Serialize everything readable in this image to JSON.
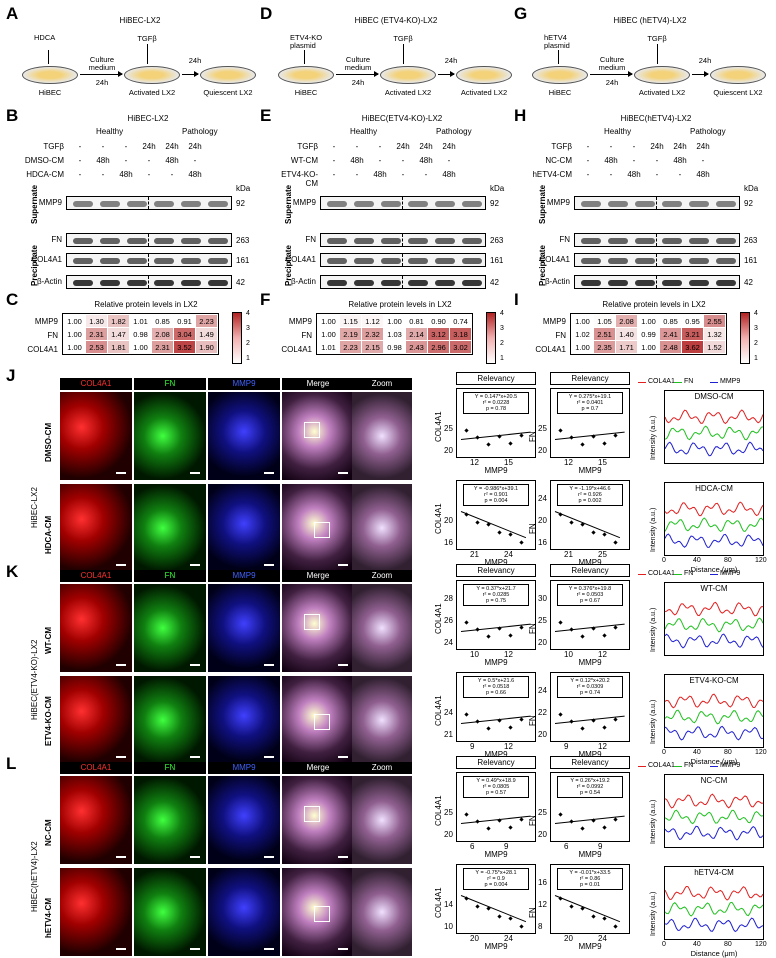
{
  "panels": {
    "A": "A",
    "B": "B",
    "C": "C",
    "D": "D",
    "E": "E",
    "F": "F",
    "G": "G",
    "H": "H",
    "I": "I",
    "J": "J",
    "K": "K",
    "L": "L"
  },
  "schemes": [
    {
      "title": "HiBEC-LX2",
      "left_top": "HDCA",
      "mid_label": "Culture\nmedium",
      "mid_time": "24h",
      "treat": "TGFβ",
      "time2": "24h",
      "dish1": "HiBEC",
      "dish2": "Activated LX2",
      "dish3": "Quiescent LX2"
    },
    {
      "title": "HiBEC (ETV4-KO)-LX2",
      "left_top": "ETV4-KO\nplasmid",
      "mid_label": "Culture\nmedium",
      "mid_time": "24h",
      "treat": "TGFβ",
      "time2": "24h",
      "dish1": "HiBEC",
      "dish2": "Activated LX2",
      "dish3": "Activated LX2"
    },
    {
      "title": "HiBEC (hETV4)-LX2",
      "left_top": "hETV4\nplasmid",
      "mid_label": "Culture\nmedium",
      "mid_time": "24h",
      "treat": "TGFβ",
      "time2": "24h",
      "dish1": "HiBEC",
      "dish2": "Activated LX2",
      "dish3": "Quiescent LX2"
    }
  ],
  "blots": [
    {
      "title": "HiBEC-LX2",
      "healthy": "Healthy",
      "pathology": "Pathology",
      "rows": [
        [
          "TGFβ",
          "-",
          "-",
          "-",
          "24h",
          "24h",
          "24h"
        ],
        [
          "DMSO-CM",
          "-",
          "48h",
          "-",
          "-",
          "48h",
          "-"
        ],
        [
          "HDCA-CM",
          "-",
          "-",
          "48h",
          "-",
          "-",
          "48h"
        ]
      ]
    },
    {
      "title": "HiBEC(ETV4-KO)-LX2",
      "healthy": "Healthy",
      "pathology": "Pathology",
      "rows": [
        [
          "TGFβ",
          "-",
          "-",
          "-",
          "24h",
          "24h",
          "24h"
        ],
        [
          "WT-CM",
          "-",
          "48h",
          "-",
          "-",
          "48h",
          "-"
        ],
        [
          "ETV4-KO-CM",
          "-",
          "-",
          "48h",
          "-",
          "-",
          "48h"
        ]
      ]
    },
    {
      "title": "HiBEC(hETV4)-LX2",
      "healthy": "Healthy",
      "pathology": "Pathology",
      "rows": [
        [
          "TGFβ",
          "-",
          "-",
          "-",
          "24h",
          "24h",
          "24h"
        ],
        [
          "NC-CM",
          "-",
          "48h",
          "-",
          "-",
          "48h",
          "-"
        ],
        [
          "hETV4-CM",
          "-",
          "-",
          "48h",
          "-",
          "-",
          "48h"
        ]
      ]
    }
  ],
  "blot_labels": {
    "kda": "kDa",
    "supernate": "Supernate",
    "precipitate": "Precipitate",
    "mmp9": "MMP9",
    "fn": "FN",
    "col4a1": "COL4A1",
    "actin": "β-Actin",
    "k92": "92",
    "k263": "263",
    "k161": "161",
    "k42": "42"
  },
  "heatmaps": [
    {
      "title": "Relative protein levels in LX2",
      "rows": [
        "MMP9",
        "FN",
        "COL4A1"
      ],
      "values": [
        [
          1.0,
          1.3,
          1.82,
          1.01,
          0.85,
          0.91,
          2.23
        ],
        [
          1.0,
          2.31,
          1.47,
          0.98,
          2.08,
          3.04,
          1.49
        ],
        [
          1.0,
          2.53,
          1.81,
          1.0,
          2.31,
          3.52,
          1.9
        ]
      ],
      "scale": [
        "4",
        "3",
        "2",
        "1"
      ]
    },
    {
      "title": "Relative protein levels in LX2",
      "rows": [
        "MMP9",
        "FN",
        "COL4A1"
      ],
      "values": [
        [
          1.0,
          1.15,
          1.12,
          1.0,
          0.81,
          0.9,
          0.74
        ],
        [
          1.0,
          2.19,
          2.32,
          1.03,
          2.14,
          3.12,
          3.18
        ],
        [
          1.01,
          2.23,
          2.15,
          0.98,
          2.43,
          2.96,
          3.02
        ]
      ],
      "scale": [
        "4",
        "3",
        "2",
        "1"
      ]
    },
    {
      "title": "Relative protein levels in LX2",
      "rows": [
        "MMP9",
        "FN",
        "COL4A1"
      ],
      "values": [
        [
          1.0,
          1.05,
          2.08,
          1.0,
          0.85,
          0.95,
          2.55
        ],
        [
          1.02,
          2.51,
          1.4,
          0.99,
          2.41,
          3.21,
          1.32
        ],
        [
          1.0,
          2.35,
          1.71,
          1.0,
          2.48,
          3.62,
          1.52
        ]
      ],
      "scale": [
        "4",
        "3",
        "2",
        "1"
      ]
    }
  ],
  "mic_headers": [
    "COL4A1",
    "FN",
    "MMP9",
    "Merge",
    "Zoom"
  ],
  "mic_groups": [
    {
      "side": "HiBEC-LX2",
      "rows": [
        "DMSO-CM",
        "HDCA-CM"
      ]
    },
    {
      "side": "HiBEC(ETV4-KO)-LX2",
      "rows": [
        "WT-CM",
        "ETV4-KO-CM"
      ]
    },
    {
      "side": "HiBEC(hETV4)-LX2",
      "rows": [
        "NC-CM",
        "hETV4-CM"
      ]
    }
  ],
  "relevancy": "Relevancy",
  "scatters": [
    {
      "eq": "Y = 0.147*x+20.5",
      "r2": "r² = 0.0228",
      "p": "p = 0.78",
      "ylab": "COL4A1",
      "xlab": "MMP9",
      "xt": [
        "12",
        "15"
      ],
      "yt": [
        "20",
        "25"
      ]
    },
    {
      "eq": "Y = 0.275*x+19.1",
      "r2": "r² = 0.0401",
      "p": "p = 0.7",
      "ylab": "FN",
      "xlab": "MMP9",
      "xt": [
        "12",
        "15"
      ],
      "yt": [
        "20",
        "25"
      ]
    },
    {
      "eq": "Y = -0.986*x+39.1",
      "r2": "r² = 0.901",
      "p": "p = 0.004",
      "ylab": "COL4A1",
      "xlab": "MMP9",
      "xt": [
        "21",
        "24"
      ],
      "yt": [
        "16",
        "20"
      ]
    },
    {
      "eq": "Y = -1.19*x+46.6",
      "r2": "r² = 0.926",
      "p": "p = 0.002",
      "ylab": "FN",
      "xlab": "MMP9",
      "xt": [
        "21",
        "25"
      ],
      "yt": [
        "16",
        "20",
        "24"
      ]
    },
    {
      "eq": "Y = 0.37*x+21.7",
      "r2": "r² = 0.0285",
      "p": "p = 0.75",
      "ylab": "COL4A1",
      "xlab": "MMP9",
      "xt": [
        "10",
        "12"
      ],
      "yt": [
        "24",
        "26",
        "28"
      ]
    },
    {
      "eq": "Y = 0.376*x+19.8",
      "r2": "r² = 0.0503",
      "p": "p = 0.67",
      "ylab": "FN",
      "xlab": "MMP9",
      "xt": [
        "10",
        "12"
      ],
      "yt": [
        "20",
        "25",
        "30"
      ]
    },
    {
      "eq": "Y = 0.5*x+21.6",
      "r2": "r² = 0.0518",
      "p": "p = 0.66",
      "ylab": "COL4A1",
      "xlab": "MMP9",
      "xt": [
        "9",
        "12"
      ],
      "yt": [
        "21",
        "24"
      ]
    },
    {
      "eq": "Y = 0.12*x+20.2",
      "r2": "r² = 0.0309",
      "p": "p = 0.74",
      "ylab": "FN",
      "xlab": "MMP9",
      "xt": [
        "9",
        "12"
      ],
      "yt": [
        "20",
        "22",
        "24"
      ]
    },
    {
      "eq": "Y = 0.49*x+18.9",
      "r2": "r² = 0.0805",
      "p": "p = 0.57",
      "ylab": "COL4A1",
      "xlab": "MMP9",
      "xt": [
        "6",
        "9"
      ],
      "yt": [
        "20",
        "25"
      ]
    },
    {
      "eq": "Y = 0.26*x+19.2",
      "r2": "r² = 0.0992",
      "p": "p = 0.54",
      "ylab": "FN",
      "xlab": "MMP9",
      "xt": [
        "6",
        "9"
      ],
      "yt": [
        "20",
        "25"
      ]
    },
    {
      "eq": "Y = -0.75*x+28.1",
      "r2": "r² = 0.9",
      "p": "p = 0.004",
      "ylab": "COL4A1",
      "xlab": "MMP9",
      "xt": [
        "20",
        "24"
      ],
      "yt": [
        "10",
        "14"
      ]
    },
    {
      "eq": "Y = -0.01*x+33.5",
      "r2": "r² = 0.86",
      "p": "p = 0.01",
      "ylab": "FN",
      "xlab": "MMP9",
      "xt": [
        "20",
        "24"
      ],
      "yt": [
        "8",
        "12",
        "16"
      ]
    }
  ],
  "lineplots": [
    {
      "title": "DMSO-CM",
      "legend": [
        "COL4A1",
        "FN",
        "MMP9"
      ]
    },
    {
      "title": "HDCA-CM",
      "legend": [
        "COL4A1",
        "FN",
        "MMP9"
      ]
    },
    {
      "title": "WT-CM",
      "legend": [
        "COL4A1",
        "FN",
        "MMP9"
      ]
    },
    {
      "title": "ETV4-KO-CM",
      "legend": [
        "COL4A1",
        "FN",
        "MMP9"
      ]
    },
    {
      "title": "NC-CM",
      "legend": [
        "COL4A1",
        "FN",
        "MMP9"
      ]
    },
    {
      "title": "hETV4-CM",
      "legend": [
        "COL4A1",
        "FN",
        "MMP9"
      ]
    }
  ],
  "line_axes": {
    "ylabel": "Intensity (a.u.)",
    "xlabel": "Distance (μm)",
    "xt": [
      "0",
      "40",
      "80",
      "120"
    ]
  },
  "colors": {
    "col4a1": "#e02020",
    "fn": "#20c020",
    "mmp9": "#2020d0",
    "heat_hi": "#b22222"
  }
}
